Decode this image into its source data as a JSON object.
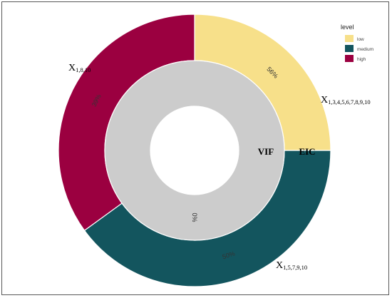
{
  "chart_data": {
    "type": "pie",
    "variant": "nested-donut",
    "legend": {
      "title": "level",
      "placement": "top-right",
      "entries": [
        {
          "name": "low",
          "color": "#f7e08a"
        },
        {
          "name": "medium",
          "color": "#13555e"
        },
        {
          "name": "high",
          "color": "#9b0040"
        }
      ]
    },
    "rings": [
      {
        "name": "EIC",
        "position": "outer",
        "slices": [
          {
            "level": "low",
            "value": 0.25,
            "pct_label": "56%",
            "label_base": "X",
            "label_sub": "1,3,4,5,6,7,8,9,10"
          },
          {
            "level": "medium",
            "value": 0.4,
            "pct_label": "50%",
            "label_base": "X",
            "label_sub": "1,5,7,9,10"
          },
          {
            "level": "high",
            "value": 0.35,
            "pct_label": "39%",
            "label_base": "X",
            "label_sub": "1,8,10"
          }
        ]
      },
      {
        "name": "VIF",
        "position": "inner",
        "slices": [
          {
            "level": "none",
            "color": "#cccccc",
            "value": 1.0,
            "pct_label": "0%"
          }
        ]
      }
    ]
  }
}
